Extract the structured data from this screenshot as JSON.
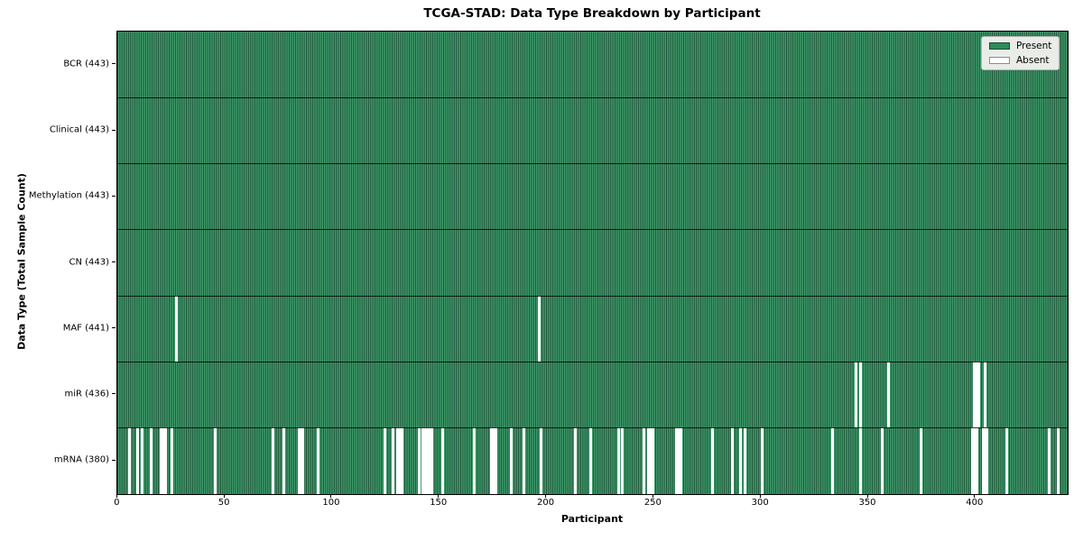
{
  "figure": {
    "title": "TCGA-STAD: Data Type Breakdown by Participant",
    "xlabel": "Participant",
    "ylabel": "Data Type (Total Sample Count)"
  },
  "legend": {
    "items": [
      {
        "label": "Present",
        "color": "#2e8b57"
      },
      {
        "label": "Absent",
        "color": "#ffffff"
      }
    ]
  },
  "chart_data": {
    "type": "heatmap",
    "title": "TCGA-STAD: Data Type Breakdown by Participant",
    "xlabel": "Participant",
    "ylabel": "Data Type (Total Sample Count)",
    "legend_entries": [
      "Present",
      "Absent"
    ],
    "legend_position": "upper right",
    "x_range": [
      0,
      443
    ],
    "x_ticks": [
      0,
      50,
      100,
      150,
      200,
      250,
      300,
      350,
      400
    ],
    "n_participants": 443,
    "cell_fill": "#3f9e6d",
    "cell_edge_color": "rgba(0,0,0,0.5)",
    "absent_color": "#ffffff",
    "rows": [
      {
        "label": "BCR (443)",
        "data_type": "BCR",
        "present_count": 443,
        "absent_participants": []
      },
      {
        "label": "Clinical (443)",
        "data_type": "Clinical",
        "present_count": 443,
        "absent_participants": []
      },
      {
        "label": "Methylation (443)",
        "data_type": "Methylation",
        "present_count": 443,
        "absent_participants": []
      },
      {
        "label": "CN (443)",
        "data_type": "CN",
        "present_count": 443,
        "absent_participants": []
      },
      {
        "label": "MAF (441)",
        "data_type": "MAF",
        "present_count": 441,
        "absent_participants": [
          27,
          196
        ]
      },
      {
        "label": "miR (436)",
        "data_type": "miR",
        "present_count": 436,
        "absent_participants": [
          344,
          346,
          359,
          399,
          400,
          401,
          404
        ]
      },
      {
        "label": "mRNA (380)",
        "data_type": "mRNA",
        "present_count": 380,
        "absent_participants": [
          5,
          9,
          11,
          15,
          20,
          21,
          22,
          25,
          45,
          72,
          77,
          84,
          85,
          86,
          93,
          124,
          128,
          130,
          131,
          132,
          140,
          142,
          143,
          144,
          145,
          146,
          151,
          166,
          174,
          175,
          176,
          183,
          189,
          197,
          213,
          220,
          233,
          235,
          245,
          247,
          248,
          249,
          260,
          261,
          262,
          277,
          286,
          290,
          292,
          300,
          333,
          346,
          356,
          374,
          398,
          399,
          400,
          403,
          404,
          405,
          414,
          434,
          438
        ]
      }
    ]
  }
}
